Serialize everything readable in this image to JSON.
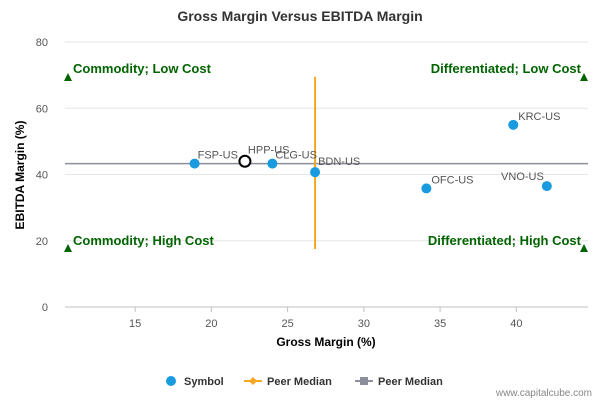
{
  "chart_data": {
    "type": "scatter",
    "title": "Gross Margin Versus EBITDA Margin",
    "xlabel": "Gross Margin (%)",
    "ylabel": "EBITDA Margin (%)",
    "xlim": [
      10.4,
      44.7
    ],
    "ylim": [
      0,
      80
    ],
    "x_ticks": [
      15,
      20,
      25,
      30,
      35,
      40
    ],
    "y_ticks": [
      0,
      20,
      40,
      60,
      80
    ],
    "points": [
      {
        "label": "FSP-US",
        "x": 18.9,
        "y": 43.3,
        "highlight": false
      },
      {
        "label": "HPP-US",
        "x": 22.2,
        "y": 44.0,
        "highlight": true
      },
      {
        "label": "CLG-US",
        "x": 24.0,
        "y": 43.3,
        "highlight": false
      },
      {
        "label": "BDN-US",
        "x": 26.8,
        "y": 40.7,
        "highlight": false
      },
      {
        "label": "OFC-US",
        "x": 34.1,
        "y": 35.8,
        "highlight": false
      },
      {
        "label": "KRC-US",
        "x": 39.8,
        "y": 55.0,
        "highlight": false
      },
      {
        "label": "VNO-US",
        "x": 42.0,
        "y": 36.5,
        "highlight": false
      }
    ],
    "peer_median_x": 26.8,
    "peer_median_x_range": [
      17.5,
      69.5
    ],
    "peer_median_y": 43.3,
    "quadrants": {
      "top_left": "Commodity; Low Cost",
      "top_right": "Differentiated; Low Cost",
      "bottom_left": "Commodity; High Cost",
      "bottom_right": "Differentiated; High Cost"
    },
    "legend": [
      {
        "name": "Symbol",
        "color": "#1a9be0",
        "marker": "circle"
      },
      {
        "name": "Peer Median",
        "color": "#f5a623",
        "marker": "diamond"
      },
      {
        "name": "Peer Median",
        "color": "#8a8f99",
        "marker": "square"
      }
    ]
  },
  "colors": {
    "symbol": "#1a9be0",
    "median_vertical": "#f5a623",
    "median_horizontal": "#8a8f99",
    "quadrant_text": "#006400",
    "grid": "#e6e6e6"
  },
  "credit": "www.capitalcube.com"
}
